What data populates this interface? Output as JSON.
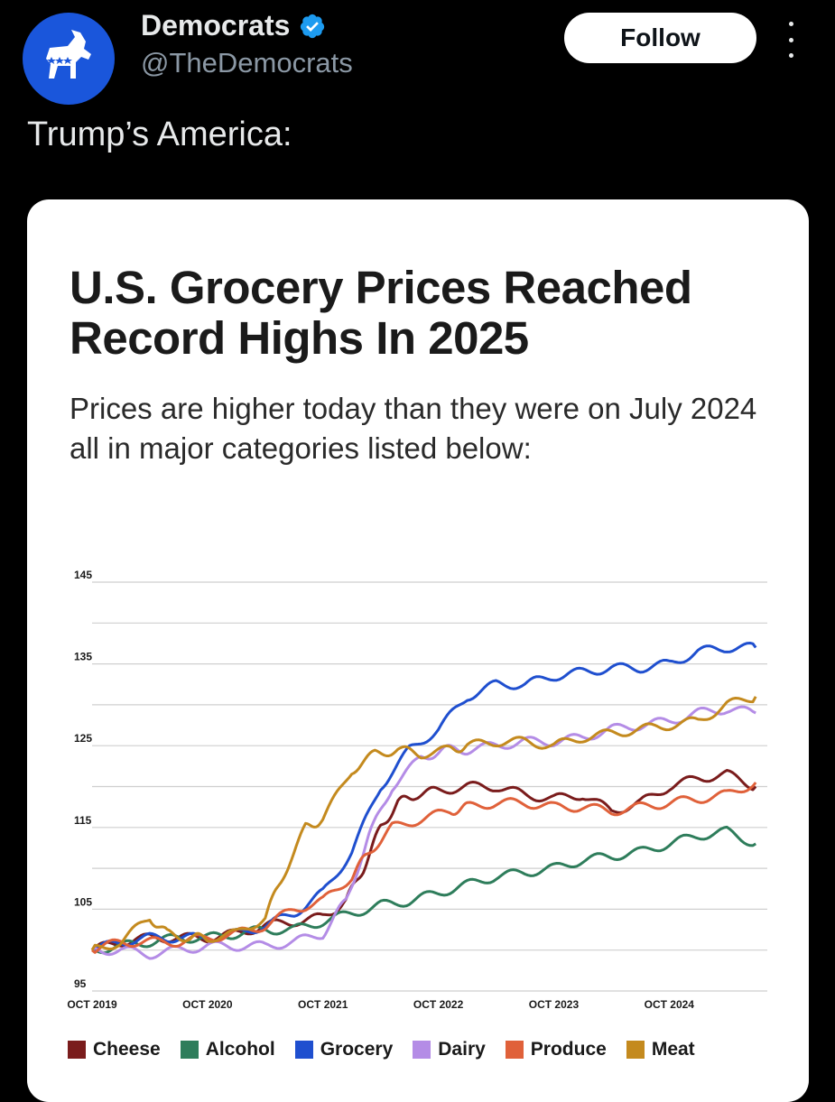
{
  "post": {
    "display_name": "Democrats",
    "handle": "@TheDemocrats",
    "follow_label": "Follow",
    "text": "Trump’s America:"
  },
  "colors": {
    "verified": "#1d9bf0",
    "avatar_bg": "#1a56db"
  },
  "chart_data": {
    "type": "line",
    "title": "U.S. Grocery Prices Reached Record Highs In 2025",
    "subtitle": "Prices are higher today than they were on July 2024 all in major categories listed below:",
    "xlabel": "",
    "ylabel": "",
    "ylim": [
      95,
      145
    ],
    "xlim": [
      2019.75,
      2025.6
    ],
    "yticks": [
      95,
      105,
      115,
      125,
      135,
      145
    ],
    "xticks": [
      {
        "label": "OCT 2019",
        "x": 2019.75
      },
      {
        "label": "OCT 2020",
        "x": 2020.75
      },
      {
        "label": "OCT 2021",
        "x": 2021.75
      },
      {
        "label": "OCT 2022",
        "x": 2022.75
      },
      {
        "label": "OCT 2023",
        "x": 2023.75
      },
      {
        "label": "OCT 2024",
        "x": 2024.75
      }
    ],
    "grid": true,
    "legend_position": "bottom",
    "series": [
      {
        "name": "Cheese",
        "color": "#7a1c1c",
        "points": [
          [
            2019.75,
            100
          ],
          [
            2020.0,
            101
          ],
          [
            2020.25,
            101.5
          ],
          [
            2020.5,
            101.5
          ],
          [
            2020.75,
            101.5
          ],
          [
            2021.0,
            102
          ],
          [
            2021.25,
            103
          ],
          [
            2021.5,
            103.5
          ],
          [
            2021.75,
            104
          ],
          [
            2021.95,
            106
          ],
          [
            2022.1,
            110
          ],
          [
            2022.25,
            115
          ],
          [
            2022.4,
            118
          ],
          [
            2022.55,
            119
          ],
          [
            2022.75,
            119.5
          ],
          [
            2023.0,
            120
          ],
          [
            2023.25,
            120
          ],
          [
            2023.5,
            119
          ],
          [
            2023.75,
            118.5
          ],
          [
            2024.0,
            119
          ],
          [
            2024.25,
            117
          ],
          [
            2024.5,
            118
          ],
          [
            2024.75,
            120
          ],
          [
            2025.0,
            121
          ],
          [
            2025.25,
            121.5
          ],
          [
            2025.5,
            120
          ]
        ]
      },
      {
        "name": "Alcohol",
        "color": "#2e7d5b",
        "points": [
          [
            2019.75,
            100
          ],
          [
            2020.0,
            100.5
          ],
          [
            2020.25,
            101
          ],
          [
            2020.5,
            101.5
          ],
          [
            2020.75,
            101.5
          ],
          [
            2021.0,
            102
          ],
          [
            2021.25,
            102.5
          ],
          [
            2021.5,
            102.5
          ],
          [
            2021.75,
            103.5
          ],
          [
            2022.0,
            104.5
          ],
          [
            2022.25,
            105.5
          ],
          [
            2022.5,
            106
          ],
          [
            2022.75,
            107
          ],
          [
            2023.0,
            108
          ],
          [
            2023.25,
            109
          ],
          [
            2023.5,
            109.5
          ],
          [
            2023.75,
            110
          ],
          [
            2024.0,
            111
          ],
          [
            2024.25,
            111.5
          ],
          [
            2024.5,
            112
          ],
          [
            2024.75,
            113
          ],
          [
            2025.0,
            114
          ],
          [
            2025.25,
            114.5
          ],
          [
            2025.5,
            113
          ]
        ]
      },
      {
        "name": "Grocery",
        "color": "#1f4fcf",
        "points": [
          [
            2019.75,
            100
          ],
          [
            2020.0,
            101
          ],
          [
            2020.25,
            101.5
          ],
          [
            2020.5,
            101.5
          ],
          [
            2020.75,
            101.5
          ],
          [
            2021.0,
            102
          ],
          [
            2021.25,
            103
          ],
          [
            2021.5,
            104.5
          ],
          [
            2021.75,
            107
          ],
          [
            2022.0,
            112
          ],
          [
            2022.25,
            120
          ],
          [
            2022.5,
            124.5
          ],
          [
            2022.75,
            127
          ],
          [
            2023.0,
            131
          ],
          [
            2023.25,
            132.5
          ],
          [
            2023.5,
            132.5
          ],
          [
            2023.75,
            133.5
          ],
          [
            2024.0,
            134
          ],
          [
            2024.25,
            134.5
          ],
          [
            2024.5,
            134.5
          ],
          [
            2024.75,
            135
          ],
          [
            2025.0,
            136.5
          ],
          [
            2025.25,
            137
          ],
          [
            2025.5,
            137
          ]
        ]
      },
      {
        "name": "Dairy",
        "color": "#b48ce6",
        "points": [
          [
            2019.75,
            100
          ],
          [
            2020.0,
            100
          ],
          [
            2020.25,
            99.5
          ],
          [
            2020.5,
            100
          ],
          [
            2020.75,
            100.5
          ],
          [
            2021.0,
            100.5
          ],
          [
            2021.25,
            100.5
          ],
          [
            2021.5,
            101
          ],
          [
            2021.75,
            102
          ],
          [
            2021.95,
            106
          ],
          [
            2022.15,
            114
          ],
          [
            2022.35,
            120
          ],
          [
            2022.6,
            123.5
          ],
          [
            2022.8,
            124.5
          ],
          [
            2023.0,
            124.5
          ],
          [
            2023.25,
            125
          ],
          [
            2023.5,
            125.5
          ],
          [
            2023.75,
            125.5
          ],
          [
            2024.0,
            126
          ],
          [
            2024.25,
            127
          ],
          [
            2024.5,
            127.5
          ],
          [
            2024.75,
            128
          ],
          [
            2025.0,
            129
          ],
          [
            2025.25,
            129.5
          ],
          [
            2025.5,
            129
          ]
        ]
      },
      {
        "name": "Produce",
        "color": "#e0613a",
        "points": [
          [
            2019.75,
            100
          ],
          [
            2020.0,
            101
          ],
          [
            2020.25,
            101
          ],
          [
            2020.5,
            101
          ],
          [
            2020.75,
            101.5
          ],
          [
            2021.0,
            102
          ],
          [
            2021.25,
            103
          ],
          [
            2021.5,
            105
          ],
          [
            2021.75,
            106
          ],
          [
            2022.0,
            109
          ],
          [
            2022.15,
            112
          ],
          [
            2022.35,
            115
          ],
          [
            2022.6,
            116
          ],
          [
            2022.85,
            117
          ],
          [
            2023.0,
            117.5
          ],
          [
            2023.25,
            118
          ],
          [
            2023.5,
            118
          ],
          [
            2023.75,
            117.5
          ],
          [
            2024.0,
            117.5
          ],
          [
            2024.25,
            117
          ],
          [
            2024.5,
            117.5
          ],
          [
            2024.75,
            118
          ],
          [
            2025.0,
            118.5
          ],
          [
            2025.25,
            119
          ],
          [
            2025.5,
            120.5
          ]
        ]
      },
      {
        "name": "Meat",
        "color": "#c48a1e",
        "points": [
          [
            2019.75,
            100
          ],
          [
            2020.0,
            101
          ],
          [
            2020.25,
            104
          ],
          [
            2020.4,
            102
          ],
          [
            2020.6,
            101.5
          ],
          [
            2020.75,
            101.5
          ],
          [
            2021.0,
            102
          ],
          [
            2021.25,
            104
          ],
          [
            2021.4,
            109
          ],
          [
            2021.6,
            115
          ],
          [
            2021.75,
            116
          ],
          [
            2022.0,
            122
          ],
          [
            2022.2,
            124
          ],
          [
            2022.4,
            124.5
          ],
          [
            2022.6,
            124
          ],
          [
            2022.85,
            124.5
          ],
          [
            2023.0,
            125
          ],
          [
            2023.25,
            125.5
          ],
          [
            2023.5,
            125.5
          ],
          [
            2023.75,
            125
          ],
          [
            2024.0,
            126
          ],
          [
            2024.25,
            126.5
          ],
          [
            2024.5,
            127
          ],
          [
            2024.75,
            127.5
          ],
          [
            2025.0,
            128
          ],
          [
            2025.25,
            130
          ],
          [
            2025.5,
            131
          ]
        ]
      }
    ]
  }
}
